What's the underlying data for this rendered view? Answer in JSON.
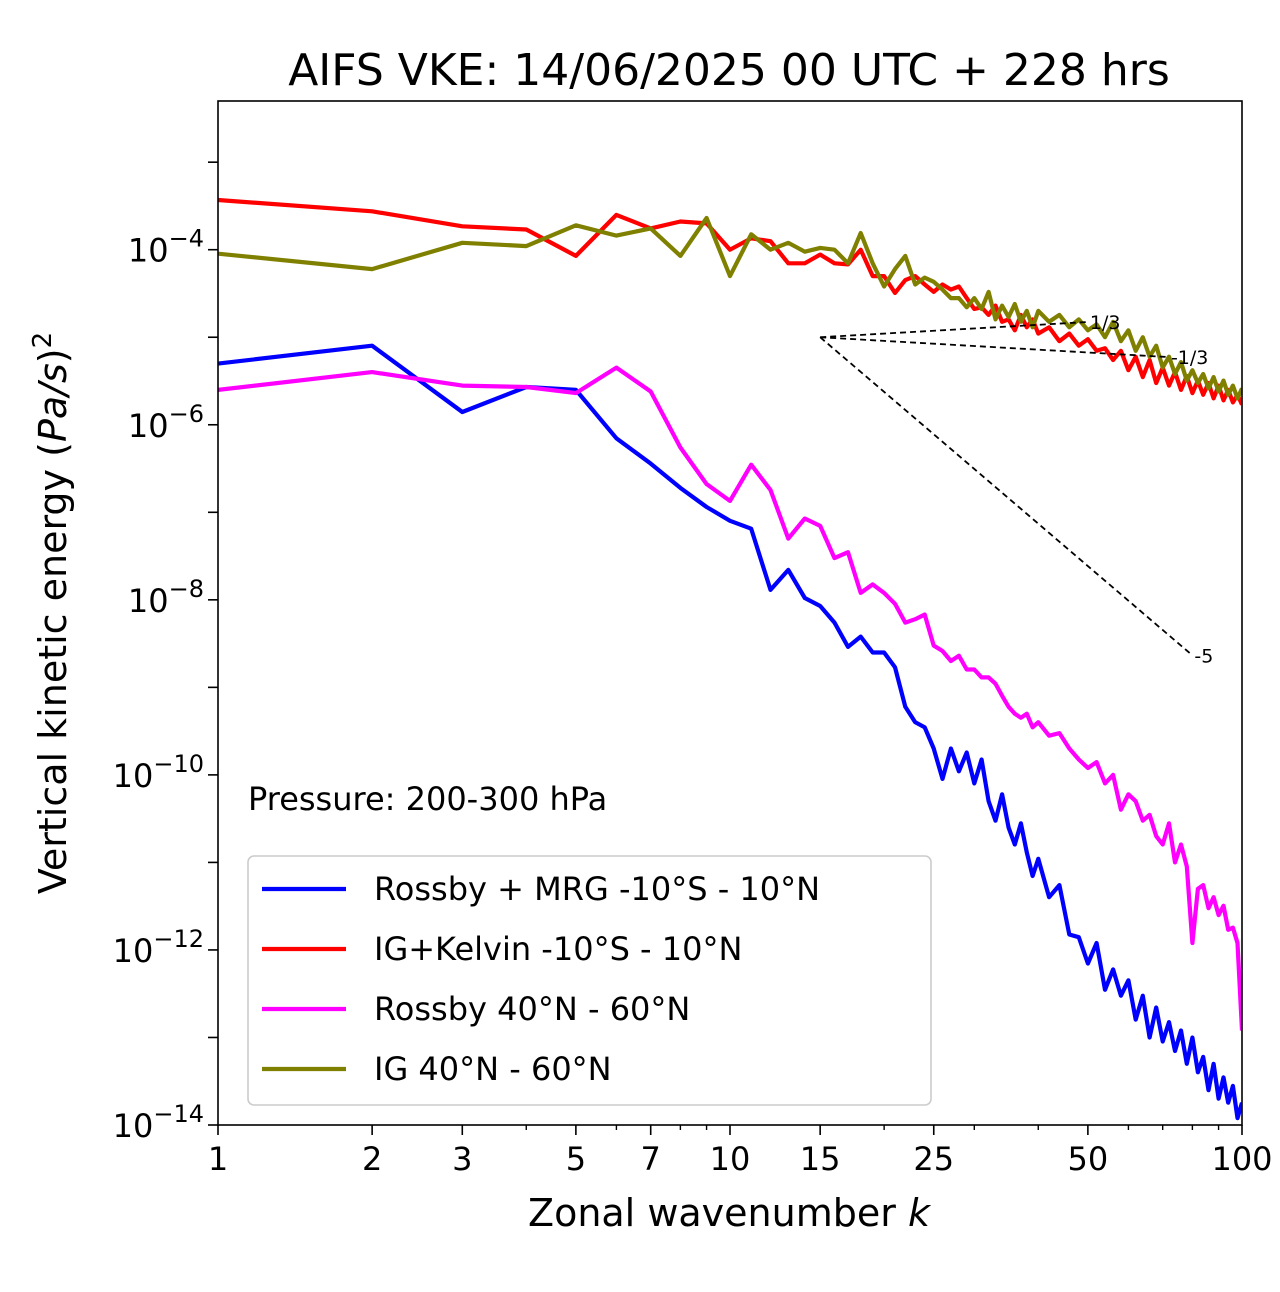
{
  "chart_data": {
    "type": "line",
    "title": "AIFS VKE: 14/06/2025 00 UTC + 228 hrs",
    "xlabel_main": "Zonal wavenumber ",
    "xlabel_var": "k",
    "ylabel_main": "Vertical kinetic energy (",
    "ylabel_var": "Pa/s",
    "ylabel_close": ")",
    "ylabel_sup": "2",
    "xscale": "log",
    "yscale": "log",
    "xlim": [
      1,
      100
    ],
    "ylim": [
      1e-14,
      0.005
    ],
    "x_ticks": [
      {
        "value": 1,
        "label": "1"
      },
      {
        "value": 2,
        "label": "2"
      },
      {
        "value": 3,
        "label": "3"
      },
      {
        "value": 5,
        "label": "5"
      },
      {
        "value": 7,
        "label": "7"
      },
      {
        "value": 10,
        "label": "10"
      },
      {
        "value": 15,
        "label": "15"
      },
      {
        "value": 25,
        "label": "25"
      },
      {
        "value": 50,
        "label": "50"
      },
      {
        "value": 100,
        "label": "100"
      }
    ],
    "y_ticks": [
      {
        "exp": -4,
        "base": "10",
        "sup": "−4"
      },
      {
        "exp": -6,
        "base": "10",
        "sup": "−6"
      },
      {
        "exp": -8,
        "base": "10",
        "sup": "−8"
      },
      {
        "exp": -10,
        "base": "10",
        "sup": "−10"
      },
      {
        "exp": -12,
        "base": "10",
        "sup": "−12"
      },
      {
        "exp": -14,
        "base": "10",
        "sup": "−14"
      }
    ],
    "annotation": "Pressure: 200-300 hPa",
    "legend_position": "lower-left",
    "grid": false,
    "reference_slopes": [
      {
        "label": "1/3",
        "x": [
          15,
          50
        ],
        "y": [
          1e-05,
          1.494e-05
        ]
      },
      {
        "label": "-1/3",
        "x": [
          15,
          72
        ],
        "y": [
          1e-05,
          5.93e-06
        ]
      },
      {
        "label": "-5",
        "x": [
          15,
          80
        ],
        "y": [
          1e-05,
          2.32e-09
        ]
      }
    ],
    "series": [
      {
        "name": "Rossby + MRG -10°S - 10°N",
        "color": "#0000ff",
        "x": [
          1,
          2,
          3,
          4,
          5,
          6,
          7,
          8,
          9,
          10,
          11,
          12,
          13,
          14,
          15,
          16,
          17,
          18,
          19,
          20,
          21,
          22,
          23,
          24,
          25,
          26,
          27,
          28,
          29,
          30,
          31,
          32,
          33,
          34,
          35,
          36,
          37,
          38,
          39,
          40,
          42,
          44,
          46,
          48,
          50,
          52,
          54,
          56,
          58,
          60,
          62,
          64,
          66,
          68,
          70,
          72,
          74,
          76,
          78,
          80,
          82,
          84,
          86,
          88,
          90,
          92,
          94,
          96,
          98,
          100
        ],
        "y": [
          5e-06,
          8e-06,
          1.4e-06,
          2.7e-06,
          2.5e-06,
          7e-07,
          3.6e-07,
          1.9e-07,
          1.15e-07,
          8e-08,
          6.5e-08,
          1.3e-08,
          2.2e-08,
          1.05e-08,
          8.5e-09,
          5.5e-09,
          2.9e-09,
          3.8e-09,
          2.5e-09,
          2.5e-09,
          1.7e-09,
          6e-10,
          4e-10,
          3.5e-10,
          2e-10,
          9e-11,
          2e-10,
          1.1e-10,
          1.8e-10,
          8e-11,
          1.5e-10,
          5e-11,
          3e-11,
          6e-11,
          2.5e-11,
          1.6e-11,
          2.8e-11,
          1.3e-11,
          7e-12,
          1.1e-11,
          4e-12,
          5.5e-12,
          1.5e-12,
          1.4e-12,
          7e-13,
          1.2e-12,
          3.5e-13,
          6e-13,
          3e-13,
          4.5e-13,
          1.6e-13,
          3e-13,
          1e-13,
          2.2e-13,
          9e-14,
          1.5e-13,
          7e-14,
          1.2e-13,
          5e-14,
          1e-13,
          4e-14,
          6e-14,
          2.5e-14,
          5e-14,
          2e-14,
          3.5e-14,
          1.8e-14,
          2.8e-14,
          1.2e-14,
          1.8e-14
        ]
      },
      {
        "name": "IG+Kelvin -10°S - 10°N",
        "color": "#ff0000",
        "x": [
          1,
          2,
          3,
          4,
          5,
          6,
          7,
          8,
          9,
          10,
          11,
          12,
          13,
          14,
          15,
          16,
          17,
          18,
          19,
          20,
          21,
          22,
          23,
          24,
          25,
          26,
          27,
          28,
          29,
          30,
          31,
          32,
          33,
          34,
          35,
          36,
          37,
          38,
          39,
          40,
          42,
          44,
          46,
          48,
          50,
          52,
          54,
          56,
          58,
          60,
          62,
          64,
          66,
          68,
          70,
          72,
          74,
          76,
          78,
          80,
          82,
          84,
          86,
          88,
          90,
          92,
          94,
          96,
          98,
          100
        ],
        "y": [
          0.00037,
          0.000275,
          0.000185,
          0.00017,
          8.5e-05,
          0.00025,
          0.000175,
          0.00021,
          0.0002,
          0.0001,
          0.000135,
          0.000125,
          7e-05,
          7e-05,
          8.8e-05,
          7e-05,
          6.8e-05,
          0.0001,
          5e-05,
          5e-05,
          3.2e-05,
          4.5e-05,
          5e-05,
          4e-05,
          3.3e-05,
          4e-05,
          3.5e-05,
          3.8e-05,
          2.8e-05,
          2.1e-05,
          2.2e-05,
          1.8e-05,
          2.3e-05,
          1.5e-05,
          1.6e-05,
          1.2e-05,
          1.8e-05,
          1.3e-05,
          1.6e-05,
          1.1e-05,
          1.3e-05,
          9e-06,
          1.1e-05,
          8e-06,
          9.5e-06,
          7e-06,
          7.5e-06,
          5.5e-06,
          7e-06,
          4.2e-06,
          6e-06,
          3.5e-06,
          5.5e-06,
          3e-06,
          4.5e-06,
          2.8e-06,
          4e-06,
          2.5e-06,
          3.6e-06,
          2.3e-06,
          3.2e-06,
          2.2e-06,
          3e-06,
          2e-06,
          2.8e-06,
          1.9e-06,
          2.5e-06,
          1.8e-06,
          2.2e-06,
          1.7e-06
        ]
      },
      {
        "name": "Rossby 40°N - 60°N",
        "color": "#ff00ff",
        "x": [
          1,
          2,
          3,
          4,
          5,
          6,
          7,
          8,
          9,
          10,
          11,
          12,
          13,
          14,
          15,
          16,
          17,
          18,
          19,
          20,
          21,
          22,
          23,
          24,
          25,
          26,
          27,
          28,
          29,
          30,
          31,
          32,
          33,
          34,
          35,
          36,
          37,
          38,
          39,
          40,
          42,
          44,
          46,
          48,
          50,
          52,
          54,
          56,
          58,
          60,
          62,
          64,
          66,
          68,
          70,
          72,
          74,
          76,
          78,
          80,
          82,
          84,
          86,
          88,
          90,
          92,
          94,
          96,
          98,
          100
        ],
        "y": [
          2.5e-06,
          4e-06,
          2.8e-06,
          2.7e-06,
          2.3e-06,
          4.5e-06,
          2.4e-06,
          5.5e-07,
          2.1e-07,
          1.35e-07,
          3.5e-07,
          1.8e-07,
          5e-08,
          8.5e-08,
          7e-08,
          3e-08,
          3.5e-08,
          1.2e-08,
          1.5e-08,
          1.2e-08,
          9e-09,
          5.5e-09,
          6e-09,
          6.8e-09,
          3e-09,
          2.6e-09,
          2e-09,
          2.3e-09,
          1.6e-09,
          1.6e-09,
          1.3e-09,
          1.3e-09,
          1.1e-09,
          8e-10,
          6e-10,
          5e-10,
          4.5e-10,
          5e-10,
          3.5e-10,
          4e-10,
          2.8e-10,
          3e-10,
          2e-10,
          1.5e-10,
          1.2e-10,
          1.4e-10,
          8e-11,
          1e-10,
          4e-11,
          6e-11,
          5e-11,
          3e-11,
          3.5e-11,
          2e-11,
          1.6e-11,
          2.8e-11,
          1e-11,
          1.6e-11,
          9e-12,
          1.2e-12,
          5e-12,
          5.5e-12,
          3e-12,
          4e-12,
          2.5e-12,
          3.2e-12,
          1.7e-12,
          1.8e-12,
          1.2e-12,
          1.2e-13
        ]
      },
      {
        "name": "IG 40°N - 60°N",
        "color": "#808000",
        "x": [
          1,
          2,
          3,
          4,
          5,
          6,
          7,
          8,
          9,
          10,
          11,
          12,
          13,
          14,
          15,
          16,
          17,
          18,
          19,
          20,
          21,
          22,
          23,
          24,
          25,
          26,
          27,
          28,
          29,
          30,
          31,
          32,
          33,
          34,
          35,
          36,
          37,
          38,
          39,
          40,
          42,
          44,
          46,
          48,
          50,
          52,
          54,
          56,
          58,
          60,
          62,
          64,
          66,
          68,
          70,
          72,
          74,
          76,
          78,
          80,
          82,
          84,
          86,
          88,
          90,
          92,
          94,
          96,
          98,
          100
        ],
        "y": [
          9e-05,
          6e-05,
          0.00012,
          0.00011,
          0.00019,
          0.000145,
          0.000175,
          8.5e-05,
          0.00023,
          5e-05,
          0.00015,
          0.0001,
          0.00012,
          9.5e-05,
          0.000105,
          0.0001,
          7e-05,
          0.000155,
          7e-05,
          3.8e-05,
          6e-05,
          8.5e-05,
          4e-05,
          4.8e-05,
          4.3e-05,
          3.5e-05,
          2.8e-05,
          2.8e-05,
          2.2e-05,
          2.8e-05,
          2.1e-05,
          3.3e-05,
          1.6e-05,
          2.3e-05,
          1.7e-05,
          2.4e-05,
          1.5e-05,
          2e-05,
          1.3e-05,
          2e-05,
          1.5e-05,
          1.8e-05,
          1.3e-05,
          1.6e-05,
          1.2e-05,
          1.4e-05,
          1e-05,
          1.5e-05,
          9e-06,
          1.2e-05,
          7e-06,
          1e-05,
          6e-06,
          8e-06,
          4.5e-06,
          6e-06,
          3.8e-06,
          5.2e-06,
          3.2e-06,
          4.2e-06,
          3e-06,
          3.8e-06,
          2.6e-06,
          3.5e-06,
          2.4e-06,
          3.2e-06,
          2.2e-06,
          2.8e-06,
          2e-06,
          2.6e-06
        ]
      }
    ]
  }
}
